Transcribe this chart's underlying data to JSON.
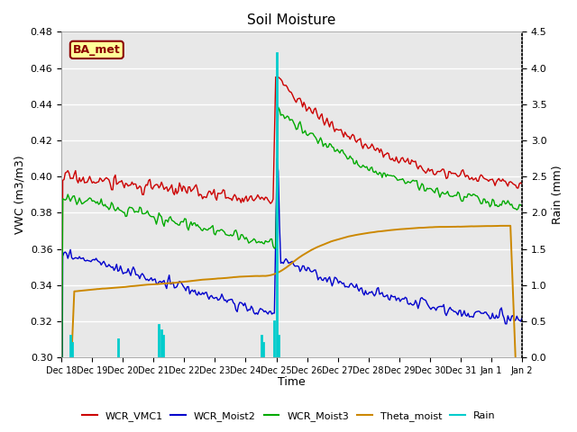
{
  "title": "Soil Moisture",
  "ylabel_left": "VWC (m3/m3)",
  "ylabel_right": "Rain (mm)",
  "xlabel": "Time",
  "ylim_left": [
    0.3,
    0.48
  ],
  "ylim_right": [
    0.0,
    4.5
  ],
  "plot_bg_color": "#e8e8e8",
  "colors": {
    "WCR_VMC1": "#cc0000",
    "WCR_Moist2": "#0000cc",
    "WCR_Moist3": "#00aa00",
    "Theta_moist": "#cc8800",
    "Rain": "#00cccc"
  },
  "xtick_labels": [
    "Dec 18",
    "Dec 19",
    "Dec 20",
    "Dec 21",
    "Dec 22",
    "Dec 23",
    "Dec 24",
    "Dec 25",
    "Dec 26",
    "Dec 27",
    "Dec 28",
    "Dec 29",
    "Dec 30",
    "Dec 31",
    "Jan 1",
    "Jan 2"
  ],
  "annotation_text": "BA_met",
  "annotation_color": "#8b0000",
  "annotation_bg": "#ffff99"
}
